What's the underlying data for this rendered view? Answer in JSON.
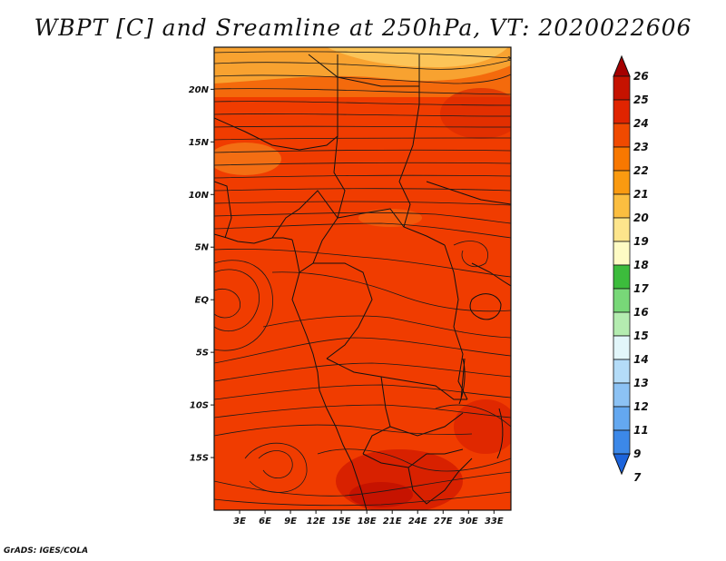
{
  "title": "WBPT [C] and Sreamline at 250hPa, VT: 2020022606",
  "credit": "GrADS: IGES/COLA",
  "map": {
    "lon_range": [
      0,
      35
    ],
    "lat_range": [
      -20,
      24
    ],
    "lat_ticks": [
      {
        "value": 20,
        "label": "20N"
      },
      {
        "value": 15,
        "label": "15N"
      },
      {
        "value": 10,
        "label": "10N"
      },
      {
        "value": 5,
        "label": "5N"
      },
      {
        "value": 0,
        "label": "EQ"
      },
      {
        "value": -5,
        "label": "5S"
      },
      {
        "value": -10,
        "label": "10S"
      },
      {
        "value": -15,
        "label": "15S"
      }
    ],
    "lon_ticks": [
      {
        "value": 3,
        "label": "3E"
      },
      {
        "value": 6,
        "label": "6E"
      },
      {
        "value": 9,
        "label": "9E"
      },
      {
        "value": 12,
        "label": "12E"
      },
      {
        "value": 15,
        "label": "15E"
      },
      {
        "value": 18,
        "label": "18E"
      },
      {
        "value": 21,
        "label": "21E"
      },
      {
        "value": 24,
        "label": "24E"
      },
      {
        "value": 27,
        "label": "27E"
      },
      {
        "value": 30,
        "label": "30E"
      },
      {
        "value": 33,
        "label": "33E"
      }
    ]
  },
  "colorbar": {
    "levels": [
      {
        "label": "26",
        "color": "#a50000"
      },
      {
        "label": "25",
        "color": "#c51200"
      },
      {
        "label": "24",
        "color": "#e02400"
      },
      {
        "label": "23",
        "color": "#f04a00"
      },
      {
        "label": "22",
        "color": "#f87800"
      },
      {
        "label": "21",
        "color": "#fa9a10"
      },
      {
        "label": "20",
        "color": "#fbbe40"
      },
      {
        "label": "19",
        "color": "#fde58c"
      },
      {
        "label": "18",
        "color": "#fefbc4"
      },
      {
        "label": "17",
        "color": "#3cbc3c"
      },
      {
        "label": "16",
        "color": "#78d878"
      },
      {
        "label": "15",
        "color": "#b4ecb0"
      },
      {
        "label": "14",
        "color": "#e2f6fa"
      },
      {
        "label": "13",
        "color": "#b4dcf8"
      },
      {
        "label": "12",
        "color": "#8cc2f4"
      },
      {
        "label": "11",
        "color": "#64a8f0"
      },
      {
        "label": "9",
        "color": "#3c88e8"
      },
      {
        "label": "7",
        "color": "#1c64dc"
      }
    ]
  }
}
